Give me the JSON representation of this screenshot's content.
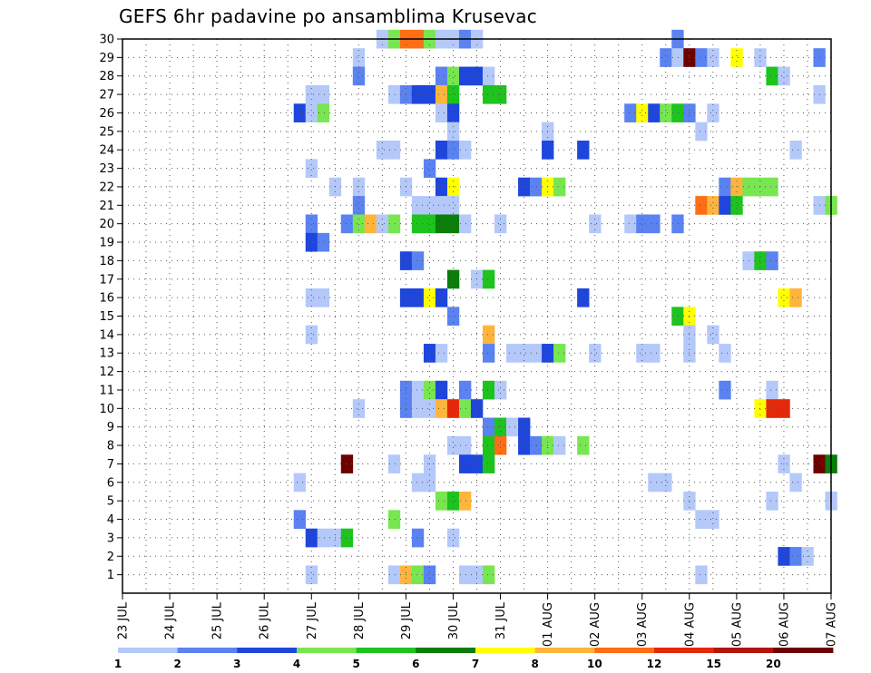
{
  "chart_data": {
    "type": "heatmap",
    "title": "GEFS 6hr padavine po ansamblima Krusevac",
    "xlabel": "",
    "ylabel": "",
    "y_ticks": [
      "1",
      "2",
      "3",
      "4",
      "5",
      "6",
      "7",
      "8",
      "9",
      "10",
      "11",
      "12",
      "13",
      "14",
      "15",
      "16",
      "17",
      "18",
      "19",
      "20",
      "21",
      "22",
      "23",
      "24",
      "25",
      "26",
      "27",
      "28",
      "29",
      "30"
    ],
    "x_ticks": [
      "23 JUL",
      "24 JUL",
      "25 JUL",
      "26 JUL",
      "27 JUL",
      "28 JUL",
      "29 JUL",
      "30 JUL",
      "31 JUL",
      "01 AUG",
      "02 AUG",
      "03 AUG",
      "04 AUG",
      "05 AUG",
      "06 AUG",
      "07 AUG"
    ],
    "x_range_days": [
      0,
      15
    ],
    "y_range": [
      0,
      30
    ],
    "grid": true,
    "colorbar": {
      "labels": [
        "1",
        "2",
        "3",
        "4",
        "5",
        "6",
        "7",
        "8",
        "10",
        "12",
        "15",
        "20"
      ],
      "colors": [
        "#b4c8fa",
        "#5a82f0",
        "#1e46dc",
        "#78e650",
        "#1ec31e",
        "#0a7d0a",
        "#ffff00",
        "#ffb43c",
        "#ff6e14",
        "#e6280a",
        "#b41405",
        "#6e0000"
      ]
    },
    "cells": [
      {
        "m": 30,
        "d": 5.5,
        "c": 0
      },
      {
        "m": 30,
        "d": 5.75,
        "c": 3
      },
      {
        "m": 30,
        "d": 6.0,
        "c": 8
      },
      {
        "m": 30,
        "d": 6.25,
        "c": 8
      },
      {
        "m": 30,
        "d": 6.5,
        "c": 3
      },
      {
        "m": 30,
        "d": 6.75,
        "c": 0
      },
      {
        "m": 30,
        "d": 7.0,
        "c": 0
      },
      {
        "m": 30,
        "d": 7.25,
        "c": 1
      },
      {
        "m": 30,
        "d": 7.5,
        "c": 0
      },
      {
        "m": 30,
        "d": 11.75,
        "c": 1
      },
      {
        "m": 29,
        "d": 5.0,
        "c": 0
      },
      {
        "m": 29,
        "d": 11.5,
        "c": 1
      },
      {
        "m": 29,
        "d": 11.75,
        "c": 0
      },
      {
        "m": 29,
        "d": 12.0,
        "c": 11
      },
      {
        "m": 29,
        "d": 12.25,
        "c": 1
      },
      {
        "m": 29,
        "d": 12.5,
        "c": 0
      },
      {
        "m": 29,
        "d": 13.0,
        "c": 6
      },
      {
        "m": 29,
        "d": 13.5,
        "c": 0
      },
      {
        "m": 29,
        "d": 14.75,
        "c": 1
      },
      {
        "m": 28,
        "d": 5.0,
        "c": 1
      },
      {
        "m": 28,
        "d": 6.75,
        "c": 1
      },
      {
        "m": 28,
        "d": 7.0,
        "c": 3
      },
      {
        "m": 28,
        "d": 7.25,
        "c": 2
      },
      {
        "m": 28,
        "d": 7.5,
        "c": 2
      },
      {
        "m": 28,
        "d": 7.75,
        "c": 0
      },
      {
        "m": 28,
        "d": 13.75,
        "c": 4
      },
      {
        "m": 28,
        "d": 14.0,
        "c": 0
      },
      {
        "m": 27,
        "d": 4.0,
        "c": 0
      },
      {
        "m": 27,
        "d": 4.25,
        "c": 0
      },
      {
        "m": 27,
        "d": 5.75,
        "c": 0
      },
      {
        "m": 27,
        "d": 6.0,
        "c": 1
      },
      {
        "m": 27,
        "d": 6.25,
        "c": 2
      },
      {
        "m": 27,
        "d": 6.5,
        "c": 2
      },
      {
        "m": 27,
        "d": 6.75,
        "c": 7
      },
      {
        "m": 27,
        "d": 7.0,
        "c": 4
      },
      {
        "m": 27,
        "d": 7.75,
        "c": 4
      },
      {
        "m": 27,
        "d": 8.0,
        "c": 4
      },
      {
        "m": 27,
        "d": 14.75,
        "c": 0
      },
      {
        "m": 26,
        "d": 3.75,
        "c": 2
      },
      {
        "m": 26,
        "d": 4.0,
        "c": 0
      },
      {
        "m": 26,
        "d": 4.25,
        "c": 3
      },
      {
        "m": 26,
        "d": 6.75,
        "c": 0
      },
      {
        "m": 26,
        "d": 7.0,
        "c": 2
      },
      {
        "m": 26,
        "d": 10.75,
        "c": 1
      },
      {
        "m": 26,
        "d": 11.0,
        "c": 6
      },
      {
        "m": 26,
        "d": 11.25,
        "c": 2
      },
      {
        "m": 26,
        "d": 11.5,
        "c": 3
      },
      {
        "m": 26,
        "d": 11.75,
        "c": 4
      },
      {
        "m": 26,
        "d": 12.0,
        "c": 1
      },
      {
        "m": 26,
        "d": 12.5,
        "c": 0
      },
      {
        "m": 25,
        "d": 7.0,
        "c": 0
      },
      {
        "m": 25,
        "d": 9.0,
        "c": 0
      },
      {
        "m": 25,
        "d": 12.25,
        "c": 0
      },
      {
        "m": 24,
        "d": 5.5,
        "c": 0
      },
      {
        "m": 24,
        "d": 5.75,
        "c": 0
      },
      {
        "m": 24,
        "d": 6.75,
        "c": 2
      },
      {
        "m": 24,
        "d": 7.0,
        "c": 1
      },
      {
        "m": 24,
        "d": 7.25,
        "c": 0
      },
      {
        "m": 24,
        "d": 9.0,
        "c": 2
      },
      {
        "m": 24,
        "d": 9.75,
        "c": 2
      },
      {
        "m": 24,
        "d": 14.25,
        "c": 0
      },
      {
        "m": 23,
        "d": 4.0,
        "c": 0
      },
      {
        "m": 23,
        "d": 6.5,
        "c": 1
      },
      {
        "m": 22,
        "d": 4.5,
        "c": 0
      },
      {
        "m": 22,
        "d": 5.0,
        "c": 0
      },
      {
        "m": 22,
        "d": 6.0,
        "c": 0
      },
      {
        "m": 22,
        "d": 6.75,
        "c": 2
      },
      {
        "m": 22,
        "d": 7.0,
        "c": 6
      },
      {
        "m": 22,
        "d": 8.5,
        "c": 2
      },
      {
        "m": 22,
        "d": 8.75,
        "c": 1
      },
      {
        "m": 22,
        "d": 9.0,
        "c": 6
      },
      {
        "m": 22,
        "d": 9.25,
        "c": 3
      },
      {
        "m": 22,
        "d": 12.75,
        "c": 1
      },
      {
        "m": 22,
        "d": 13.0,
        "c": 7
      },
      {
        "m": 22,
        "d": 13.25,
        "c": 3
      },
      {
        "m": 22,
        "d": 13.5,
        "c": 3
      },
      {
        "m": 22,
        "d": 13.75,
        "c": 3
      },
      {
        "m": 21,
        "d": 5.0,
        "c": 1
      },
      {
        "m": 21,
        "d": 6.25,
        "c": 0
      },
      {
        "m": 21,
        "d": 6.5,
        "c": 0
      },
      {
        "m": 21,
        "d": 6.75,
        "c": 0
      },
      {
        "m": 21,
        "d": 7.0,
        "c": 0
      },
      {
        "m": 21,
        "d": 12.25,
        "c": 8
      },
      {
        "m": 21,
        "d": 12.5,
        "c": 7
      },
      {
        "m": 21,
        "d": 12.75,
        "c": 2
      },
      {
        "m": 21,
        "d": 13.0,
        "c": 4
      },
      {
        "m": 21,
        "d": 14.75,
        "c": 0
      },
      {
        "m": 21,
        "d": 15.0,
        "c": 3
      },
      {
        "m": 20,
        "d": 4.0,
        "c": 1
      },
      {
        "m": 20,
        "d": 4.75,
        "c": 1
      },
      {
        "m": 20,
        "d": 5.0,
        "c": 3
      },
      {
        "m": 20,
        "d": 5.25,
        "c": 7
      },
      {
        "m": 20,
        "d": 5.5,
        "c": 0
      },
      {
        "m": 20,
        "d": 5.75,
        "c": 3
      },
      {
        "m": 20,
        "d": 6.25,
        "c": 4
      },
      {
        "m": 20,
        "d": 6.5,
        "c": 4
      },
      {
        "m": 20,
        "d": 6.75,
        "c": 5
      },
      {
        "m": 20,
        "d": 7.0,
        "c": 5
      },
      {
        "m": 20,
        "d": 7.25,
        "c": 0
      },
      {
        "m": 20,
        "d": 8.0,
        "c": 0
      },
      {
        "m": 20,
        "d": 10.0,
        "c": 0
      },
      {
        "m": 20,
        "d": 10.75,
        "c": 0
      },
      {
        "m": 20,
        "d": 11.0,
        "c": 1
      },
      {
        "m": 20,
        "d": 11.25,
        "c": 1
      },
      {
        "m": 20,
        "d": 11.75,
        "c": 1
      },
      {
        "m": 19,
        "d": 4.0,
        "c": 2
      },
      {
        "m": 19,
        "d": 4.25,
        "c": 1
      },
      {
        "m": 18,
        "d": 6.0,
        "c": 2
      },
      {
        "m": 18,
        "d": 6.25,
        "c": 1
      },
      {
        "m": 18,
        "d": 13.25,
        "c": 0
      },
      {
        "m": 18,
        "d": 13.5,
        "c": 4
      },
      {
        "m": 18,
        "d": 13.75,
        "c": 1
      },
      {
        "m": 17,
        "d": 7.0,
        "c": 5
      },
      {
        "m": 17,
        "d": 7.5,
        "c": 0
      },
      {
        "m": 17,
        "d": 7.75,
        "c": 4
      },
      {
        "m": 16,
        "d": 4.0,
        "c": 0
      },
      {
        "m": 16,
        "d": 4.25,
        "c": 0
      },
      {
        "m": 16,
        "d": 6.0,
        "c": 2
      },
      {
        "m": 16,
        "d": 6.25,
        "c": 2
      },
      {
        "m": 16,
        "d": 6.5,
        "c": 6
      },
      {
        "m": 16,
        "d": 6.75,
        "c": 2
      },
      {
        "m": 16,
        "d": 9.75,
        "c": 2
      },
      {
        "m": 16,
        "d": 14.0,
        "c": 6
      },
      {
        "m": 16,
        "d": 14.25,
        "c": 7
      },
      {
        "m": 15,
        "d": 7.0,
        "c": 1
      },
      {
        "m": 15,
        "d": 11.75,
        "c": 4
      },
      {
        "m": 15,
        "d": 12.0,
        "c": 6
      },
      {
        "m": 14,
        "d": 4.0,
        "c": 0
      },
      {
        "m": 14,
        "d": 7.75,
        "c": 7
      },
      {
        "m": 14,
        "d": 12.0,
        "c": 0
      },
      {
        "m": 14,
        "d": 12.5,
        "c": 0
      },
      {
        "m": 13,
        "d": 6.5,
        "c": 2
      },
      {
        "m": 13,
        "d": 6.75,
        "c": 0
      },
      {
        "m": 13,
        "d": 7.75,
        "c": 1
      },
      {
        "m": 13,
        "d": 8.25,
        "c": 0
      },
      {
        "m": 13,
        "d": 8.5,
        "c": 0
      },
      {
        "m": 13,
        "d": 8.75,
        "c": 0
      },
      {
        "m": 13,
        "d": 9.0,
        "c": 2
      },
      {
        "m": 13,
        "d": 9.25,
        "c": 3
      },
      {
        "m": 13,
        "d": 10.0,
        "c": 0
      },
      {
        "m": 13,
        "d": 11.0,
        "c": 0
      },
      {
        "m": 13,
        "d": 11.25,
        "c": 0
      },
      {
        "m": 13,
        "d": 12.0,
        "c": 0
      },
      {
        "m": 13,
        "d": 12.75,
        "c": 0
      },
      {
        "m": 11,
        "d": 6.0,
        "c": 1
      },
      {
        "m": 11,
        "d": 6.25,
        "c": 0
      },
      {
        "m": 11,
        "d": 6.5,
        "c": 3
      },
      {
        "m": 11,
        "d": 6.75,
        "c": 2
      },
      {
        "m": 11,
        "d": 7.25,
        "c": 1
      },
      {
        "m": 11,
        "d": 7.75,
        "c": 4
      },
      {
        "m": 11,
        "d": 8.0,
        "c": 0
      },
      {
        "m": 11,
        "d": 12.75,
        "c": 1
      },
      {
        "m": 11,
        "d": 13.75,
        "c": 0
      },
      {
        "m": 10,
        "d": 5.0,
        "c": 0
      },
      {
        "m": 10,
        "d": 6.0,
        "c": 1
      },
      {
        "m": 10,
        "d": 6.25,
        "c": 0
      },
      {
        "m": 10,
        "d": 6.5,
        "c": 0
      },
      {
        "m": 10,
        "d": 6.75,
        "c": 7
      },
      {
        "m": 10,
        "d": 7.0,
        "c": 9
      },
      {
        "m": 10,
        "d": 7.25,
        "c": 3
      },
      {
        "m": 10,
        "d": 7.5,
        "c": 2
      },
      {
        "m": 10,
        "d": 13.5,
        "c": 6
      },
      {
        "m": 10,
        "d": 13.75,
        "c": 9
      },
      {
        "m": 10,
        "d": 14.0,
        "c": 9
      },
      {
        "m": 9,
        "d": 7.75,
        "c": 1
      },
      {
        "m": 9,
        "d": 8.0,
        "c": 4
      },
      {
        "m": 9,
        "d": 8.25,
        "c": 0
      },
      {
        "m": 9,
        "d": 8.5,
        "c": 2
      },
      {
        "m": 8,
        "d": 7.0,
        "c": 0
      },
      {
        "m": 8,
        "d": 7.25,
        "c": 0
      },
      {
        "m": 8,
        "d": 7.75,
        "c": 4
      },
      {
        "m": 8,
        "d": 8.0,
        "c": 8
      },
      {
        "m": 8,
        "d": 8.5,
        "c": 2
      },
      {
        "m": 8,
        "d": 8.75,
        "c": 1
      },
      {
        "m": 8,
        "d": 9.0,
        "c": 3
      },
      {
        "m": 8,
        "d": 9.25,
        "c": 0
      },
      {
        "m": 8,
        "d": 9.75,
        "c": 3
      },
      {
        "m": 7,
        "d": 4.75,
        "c": 11
      },
      {
        "m": 7,
        "d": 5.75,
        "c": 0
      },
      {
        "m": 7,
        "d": 6.5,
        "c": 0
      },
      {
        "m": 7,
        "d": 7.25,
        "c": 2
      },
      {
        "m": 7,
        "d": 7.5,
        "c": 2
      },
      {
        "m": 7,
        "d": 7.75,
        "c": 4
      },
      {
        "m": 7,
        "d": 14.0,
        "c": 0
      },
      {
        "m": 7,
        "d": 14.75,
        "c": 11
      },
      {
        "m": 7,
        "d": 15.0,
        "c": 5
      },
      {
        "m": 6,
        "d": 3.75,
        "c": 0
      },
      {
        "m": 6,
        "d": 6.25,
        "c": 0
      },
      {
        "m": 6,
        "d": 6.5,
        "c": 0
      },
      {
        "m": 6,
        "d": 11.25,
        "c": 0
      },
      {
        "m": 6,
        "d": 11.5,
        "c": 0
      },
      {
        "m": 6,
        "d": 14.25,
        "c": 0
      },
      {
        "m": 5,
        "d": 6.75,
        "c": 3
      },
      {
        "m": 5,
        "d": 7.0,
        "c": 4
      },
      {
        "m": 5,
        "d": 7.25,
        "c": 7
      },
      {
        "m": 5,
        "d": 12.0,
        "c": 0
      },
      {
        "m": 5,
        "d": 13.75,
        "c": 0
      },
      {
        "m": 5,
        "d": 15.0,
        "c": 0
      },
      {
        "m": 4,
        "d": 3.75,
        "c": 1
      },
      {
        "m": 4,
        "d": 5.75,
        "c": 3
      },
      {
        "m": 4,
        "d": 12.25,
        "c": 0
      },
      {
        "m": 4,
        "d": 12.5,
        "c": 0
      },
      {
        "m": 3,
        "d": 4.0,
        "c": 2
      },
      {
        "m": 3,
        "d": 4.25,
        "c": 0
      },
      {
        "m": 3,
        "d": 4.5,
        "c": 0
      },
      {
        "m": 3,
        "d": 4.75,
        "c": 4
      },
      {
        "m": 3,
        "d": 6.25,
        "c": 1
      },
      {
        "m": 3,
        "d": 7.0,
        "c": 0
      },
      {
        "m": 2,
        "d": 14.0,
        "c": 2
      },
      {
        "m": 2,
        "d": 14.25,
        "c": 1
      },
      {
        "m": 2,
        "d": 14.5,
        "c": 0
      },
      {
        "m": 1,
        "d": 4.0,
        "c": 0
      },
      {
        "m": 1,
        "d": 5.75,
        "c": 0
      },
      {
        "m": 1,
        "d": 6.0,
        "c": 7
      },
      {
        "m": 1,
        "d": 6.25,
        "c": 3
      },
      {
        "m": 1,
        "d": 6.5,
        "c": 1
      },
      {
        "m": 1,
        "d": 7.25,
        "c": 0
      },
      {
        "m": 1,
        "d": 7.5,
        "c": 0
      },
      {
        "m": 1,
        "d": 7.75,
        "c": 3
      },
      {
        "m": 1,
        "d": 12.25,
        "c": 0
      }
    ]
  }
}
